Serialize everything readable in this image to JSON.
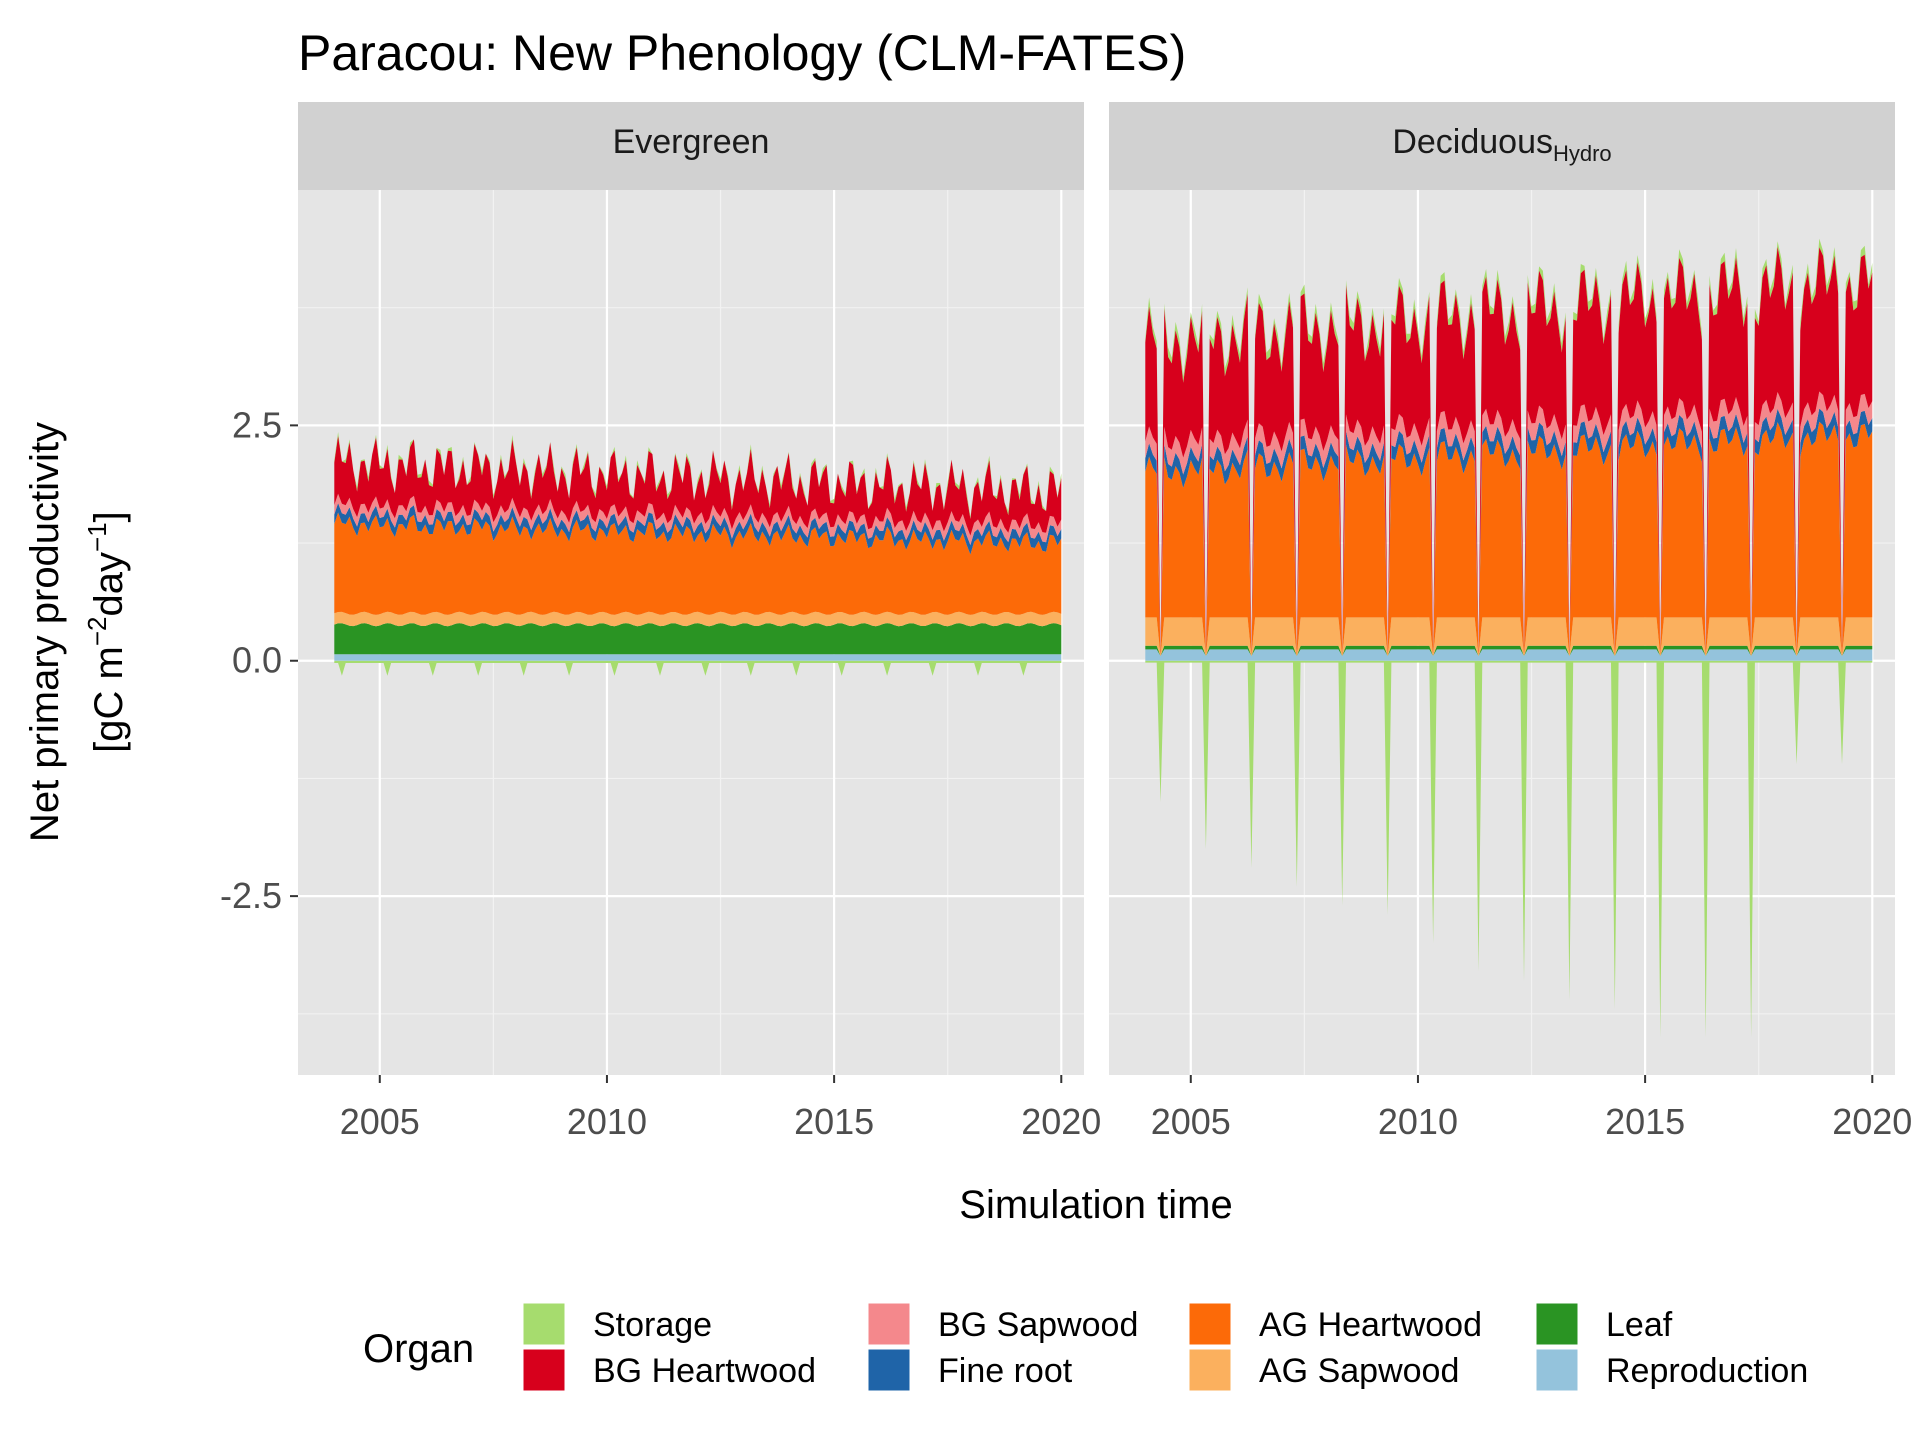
{
  "chart_data": {
    "type": "area",
    "stacked": true,
    "title": "Paracou: New Phenology (CLM-FATES)",
    "xlabel": "Simulation time",
    "ylabel_line1": "Net primary productivity",
    "ylabel_line2_parts": {
      "open": "[gC m",
      "sup1": "−2",
      "mid": "day",
      "sup2": "−1",
      "close": "]"
    },
    "xlim": [
      2003.2,
      2020.5
    ],
    "ylim": [
      -4.4,
      5.0
    ],
    "x_ticks": [
      2005,
      2010,
      2015,
      2020
    ],
    "y_ticks": [
      2.5,
      0.0,
      -2.5
    ],
    "y_tick_labels": [
      "2.5",
      "0.0",
      "-2.5"
    ],
    "grid": true,
    "legend": {
      "title": "Organ",
      "position": "bottom",
      "entries": [
        {
          "name": "Storage",
          "color": "#a6dc6e"
        },
        {
          "name": "BG Heartwood",
          "color": "#d7001c"
        },
        {
          "name": "BG Sapwood",
          "color": "#f4888c"
        },
        {
          "name": "Fine root",
          "color": "#1f64a8"
        },
        {
          "name": "AG Heartwood",
          "color": "#fc6a08"
        },
        {
          "name": "AG Sapwood",
          "color": "#fbb05e"
        },
        {
          "name": "Leaf",
          "color": "#2a9423"
        },
        {
          "name": "Reproduction",
          "color": "#94c3dc"
        }
      ]
    },
    "panels": [
      {
        "strip": "Evergreen",
        "strip_sub": "",
        "time_range": [
          2004.0,
          2020.0
        ],
        "layers_approx": {
          "Reproduction": 0.07,
          "Leaf": 0.33,
          "AG Sapwood": 0.12,
          "AG Heartwood": 0.95,
          "Fine root": 0.1,
          "BG Sapwood": 0.1,
          "BG Heartwood": 0.45,
          "Storage_positive": 0.05,
          "Storage_negative": -0.08
        },
        "annual_peak_total_approx": 2.7,
        "trend_note": "total declines from about 2.3 to 1.8"
      },
      {
        "strip": "Deciduous",
        "strip_sub": "Hydro",
        "time_range": [
          2004.0,
          2020.0
        ],
        "layers_approx": {
          "Reproduction": 0.12,
          "Leaf": 0.04,
          "AG Sapwood": 0.3,
          "AG Heartwood": 1.55,
          "Fine root": 0.14,
          "BG Sapwood": 0.18,
          "BG Heartwood": 1.05,
          "Storage_positive": 0.1
        },
        "annual_storage_dip_min_approx": [
          -1.5,
          -2.0,
          -2.2,
          -2.4,
          -2.6,
          -2.7,
          -3.0,
          -3.3,
          -3.4,
          -3.6,
          -3.7,
          -4.0,
          -4.0,
          -4.0,
          -1.1
        ],
        "annual_peak_total_approx": [
          3.1,
          3.6,
          3.5,
          3.7,
          3.8,
          3.9,
          4.0,
          4.0,
          4.1,
          3.9,
          4.1,
          4.0,
          3.9,
          4.0,
          4.4
        ]
      }
    ]
  }
}
